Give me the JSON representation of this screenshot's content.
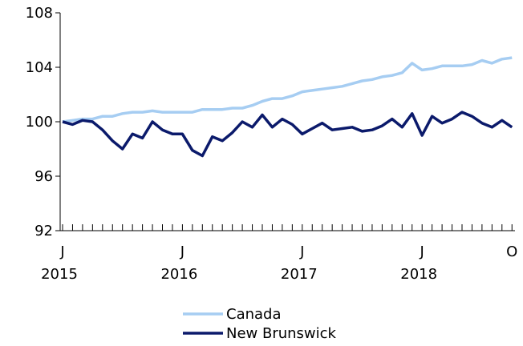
{
  "chart_data": {
    "type": "line",
    "categories": [
      "J",
      null,
      null,
      null,
      null,
      null,
      null,
      null,
      null,
      null,
      null,
      null,
      "J",
      null,
      null,
      null,
      null,
      null,
      null,
      null,
      null,
      null,
      null,
      null,
      "J",
      null,
      null,
      null,
      null,
      null,
      null,
      null,
      null,
      null,
      null,
      null,
      "J",
      null,
      null,
      null,
      null,
      null,
      null,
      null,
      null,
      "O"
    ],
    "category_years": [
      "2015",
      null,
      null,
      null,
      null,
      null,
      null,
      null,
      null,
      null,
      null,
      null,
      "2016",
      null,
      null,
      null,
      null,
      null,
      null,
      null,
      null,
      null,
      null,
      null,
      "2017",
      null,
      null,
      null,
      null,
      null,
      null,
      null,
      null,
      null,
      null,
      null,
      "2018",
      null,
      null,
      null,
      null,
      null,
      null,
      null,
      null,
      null
    ],
    "series": [
      {
        "name": "Canada",
        "color": "#a6cdf2",
        "values": [
          100.0,
          100.1,
          100.2,
          100.2,
          100.4,
          100.4,
          100.6,
          100.7,
          100.7,
          100.8,
          100.7,
          100.7,
          100.7,
          100.7,
          100.9,
          100.9,
          100.9,
          101.0,
          101.0,
          101.2,
          101.5,
          101.7,
          101.7,
          101.9,
          102.2,
          102.3,
          102.4,
          102.5,
          102.6,
          102.8,
          103.0,
          103.1,
          103.3,
          103.4,
          103.6,
          104.3,
          103.8,
          103.9,
          104.1,
          104.1,
          104.1,
          104.2,
          104.5,
          104.3,
          104.6,
          104.7
        ]
      },
      {
        "name": "New Brunswick",
        "color": "#0b1a6b",
        "values": [
          100.0,
          99.8,
          100.1,
          100.0,
          99.4,
          98.6,
          98.0,
          99.1,
          98.8,
          100.0,
          99.4,
          99.1,
          99.1,
          97.9,
          97.5,
          98.9,
          98.6,
          99.2,
          100.0,
          99.6,
          100.5,
          99.6,
          100.2,
          99.8,
          99.1,
          99.5,
          99.9,
          99.4,
          99.5,
          99.6,
          99.3,
          99.4,
          99.7,
          100.2,
          99.6,
          100.6,
          99.0,
          100.4,
          99.9,
          100.2,
          100.7,
          100.4,
          99.9,
          99.6,
          100.1,
          99.6
        ]
      }
    ],
    "ylim": [
      92,
      108
    ],
    "yticks": [
      92,
      96,
      100,
      104,
      108
    ]
  }
}
